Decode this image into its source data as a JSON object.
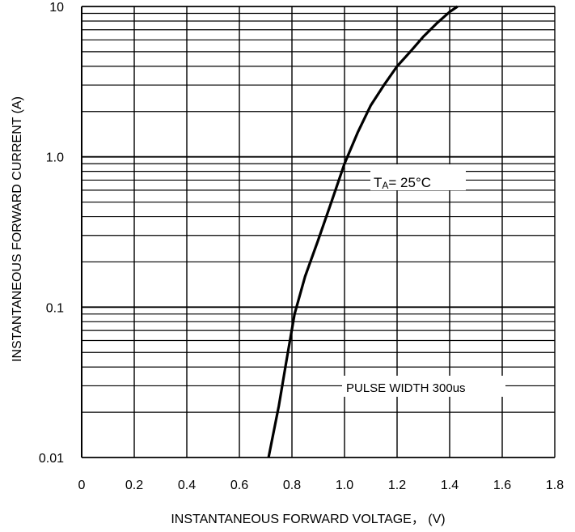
{
  "chart_data": {
    "type": "line",
    "title": "",
    "xlabel": "INSTANTANEOUS FORWARD VOLTAGE， (V)",
    "ylabel": "INSTANTANEOUS FORWARD CURRENT (A)",
    "xlim": [
      0,
      1.8
    ],
    "ylim": [
      0.01,
      10
    ],
    "y_scale": "log",
    "grid": true,
    "x_ticks": [
      "0",
      "0.2",
      "0.4",
      "0.6",
      "0.8",
      "1.0",
      "1.2",
      "1.4",
      "1.6",
      "1.8"
    ],
    "y_ticks": [
      "0.01",
      "0.1",
      "1.0",
      "10"
    ],
    "annotations": {
      "temperature": {
        "prefix": "T",
        "subscript": "A",
        "value": "=  25",
        "unit": "°C"
      },
      "pulse": "PULSE WIDTH 300us"
    },
    "series": [
      {
        "x": [
          0.7,
          0.72,
          0.75,
          0.78,
          0.81,
          0.85,
          0.9,
          0.95,
          1.0,
          1.05,
          1.1,
          1.15,
          1.2,
          1.25,
          1.3,
          1.35,
          1.4,
          1.43
        ],
        "y": [
          0.008,
          0.012,
          0.022,
          0.045,
          0.09,
          0.16,
          0.28,
          0.5,
          0.9,
          1.45,
          2.2,
          3.0,
          4.0,
          5.0,
          6.3,
          7.7,
          9.2,
          10.0
        ]
      }
    ]
  }
}
